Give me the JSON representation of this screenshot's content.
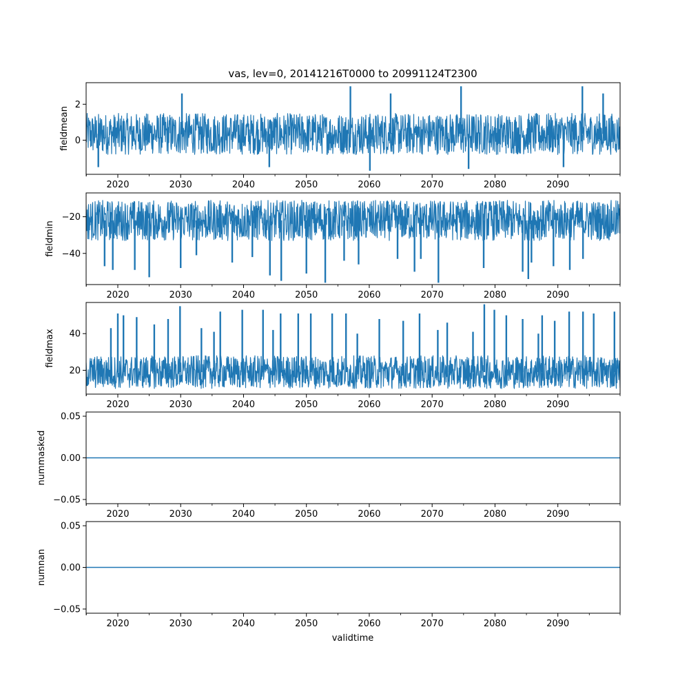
{
  "chart_data": {
    "type": "line",
    "title": "vas, lev=0, 20141216T0000 to 20991124T2300",
    "xlabel": "validtime",
    "xlim": [
      2014.96,
      2099.9
    ],
    "x_ticks": [
      "2020",
      "2030",
      "2040",
      "2050",
      "2060",
      "2070",
      "2080",
      "2090"
    ],
    "line_color": "#1f77b4",
    "subplots": [
      {
        "ylabel": "fieldmean",
        "ylim": [
          -1.9,
          3.2
        ],
        "y_ticks": [
          {
            "value": 2,
            "label": "2"
          },
          {
            "value": 0,
            "label": "0"
          }
        ],
        "series": {
          "kind": "noise",
          "name": "fieldmean",
          "base_low": -0.8,
          "base_high": 1.5,
          "range": [
            -1.7,
            3.0
          ],
          "spikes_up": [
            [
              2057,
              3.0
            ],
            [
              2074.6,
              3.0
            ],
            [
              2093.9,
              3.0
            ],
            [
              2030.2,
              2.6
            ],
            [
              2063.4,
              2.6
            ],
            [
              2097.2,
              2.6
            ]
          ],
          "spikes_down": [
            [
              2060.1,
              -1.7
            ],
            [
              2075.8,
              -1.6
            ],
            [
              2044.1,
              -1.5
            ],
            [
              2016.9,
              -1.5
            ],
            [
              2090.9,
              -1.5
            ]
          ]
        }
      },
      {
        "ylabel": "fieldmin",
        "ylim": [
          -57,
          -7
        ],
        "y_ticks": [
          {
            "value": -20,
            "label": "−20"
          },
          {
            "value": -40,
            "label": "−40"
          }
        ],
        "series": {
          "kind": "noise",
          "name": "fieldmin",
          "base_low": -33,
          "base_high": -11,
          "range": [
            -56,
            -8
          ],
          "spikes_up": [],
          "spikes_down": [
            [
              2053,
              -56
            ],
            [
              2071,
              -56
            ],
            [
              2046,
              -55
            ],
            [
              2085.3,
              -54
            ],
            [
              2025,
              -53
            ],
            [
              2044.2,
              -52
            ],
            [
              2050,
              -51
            ],
            [
              2067.2,
              -50
            ],
            [
              2084.4,
              -50
            ],
            [
              2019.2,
              -49
            ],
            [
              2022.7,
              -49
            ],
            [
              2030,
              -48
            ],
            [
              2091.9,
              -49
            ],
            [
              2089.3,
              -47
            ],
            [
              2017.9,
              -47
            ],
            [
              2058.3,
              -46
            ],
            [
              2085.8,
              -45
            ],
            [
              2038.2,
              -45
            ],
            [
              2078.2,
              -48
            ],
            [
              2056,
              -44
            ],
            [
              2064.5,
              -43
            ],
            [
              2041.4,
              -42
            ],
            [
              2094,
              -43
            ],
            [
              2032.5,
              -41
            ],
            [
              2068.2,
              -43
            ]
          ]
        }
      },
      {
        "ylabel": "fieldmax",
        "ylim": [
          7,
          57
        ],
        "y_ticks": [
          {
            "value": 40,
            "label": "40"
          },
          {
            "value": 20,
            "label": "20"
          }
        ],
        "series": {
          "kind": "noise",
          "name": "fieldmax",
          "base_low": 10,
          "base_high": 28,
          "range": [
            8,
            56
          ],
          "spikes_up": [
            [
              2029.9,
              55
            ],
            [
              2078.3,
              56
            ],
            [
              2039.8,
              53
            ],
            [
              2079.9,
              53
            ],
            [
              2020,
              51
            ],
            [
              2043.1,
              53
            ],
            [
              2091.8,
              52
            ],
            [
              2094,
              52
            ],
            [
              2099,
              52
            ],
            [
              2036.3,
              52
            ],
            [
              2045.9,
              51
            ],
            [
              2048.7,
              51
            ],
            [
              2050.7,
              51
            ],
            [
              2054.1,
              51
            ],
            [
              2056.3,
              51
            ],
            [
              2068,
              51
            ],
            [
              2081.8,
              50
            ],
            [
              2087.5,
              50
            ],
            [
              2095.7,
              51
            ],
            [
              2023,
              49
            ],
            [
              2028,
              48
            ],
            [
              2061.6,
              48
            ],
            [
              2065.4,
              47
            ],
            [
              2072.4,
              46
            ],
            [
              2084.4,
              48
            ],
            [
              2089.5,
              47
            ],
            [
              2020.9,
              50
            ],
            [
              2025.8,
              45
            ],
            [
              2033.3,
              43
            ],
            [
              2035.3,
              41
            ],
            [
              2018.9,
              43
            ],
            [
              2070.9,
              42
            ],
            [
              2076.5,
              41
            ],
            [
              2058.1,
              40
            ],
            [
              2044.7,
              42
            ],
            [
              2086.9,
              40
            ]
          ]
        }
      },
      {
        "ylabel": "nummasked",
        "ylim": [
          -0.055,
          0.055
        ],
        "y_ticks": [
          {
            "value": 0.05,
            "label": "0.05"
          },
          {
            "value": 0,
            "label": "0.00"
          },
          {
            "value": -0.05,
            "label": "−0.05"
          }
        ],
        "series": {
          "kind": "constant",
          "name": "nummasked",
          "value": 0
        }
      },
      {
        "ylabel": "numnan",
        "ylim": [
          -0.055,
          0.055
        ],
        "y_ticks": [
          {
            "value": 0.05,
            "label": "0.05"
          },
          {
            "value": 0,
            "label": "0.00"
          },
          {
            "value": -0.05,
            "label": "−0.05"
          }
        ],
        "series": {
          "kind": "constant",
          "name": "numnan",
          "value": 0
        }
      }
    ]
  }
}
